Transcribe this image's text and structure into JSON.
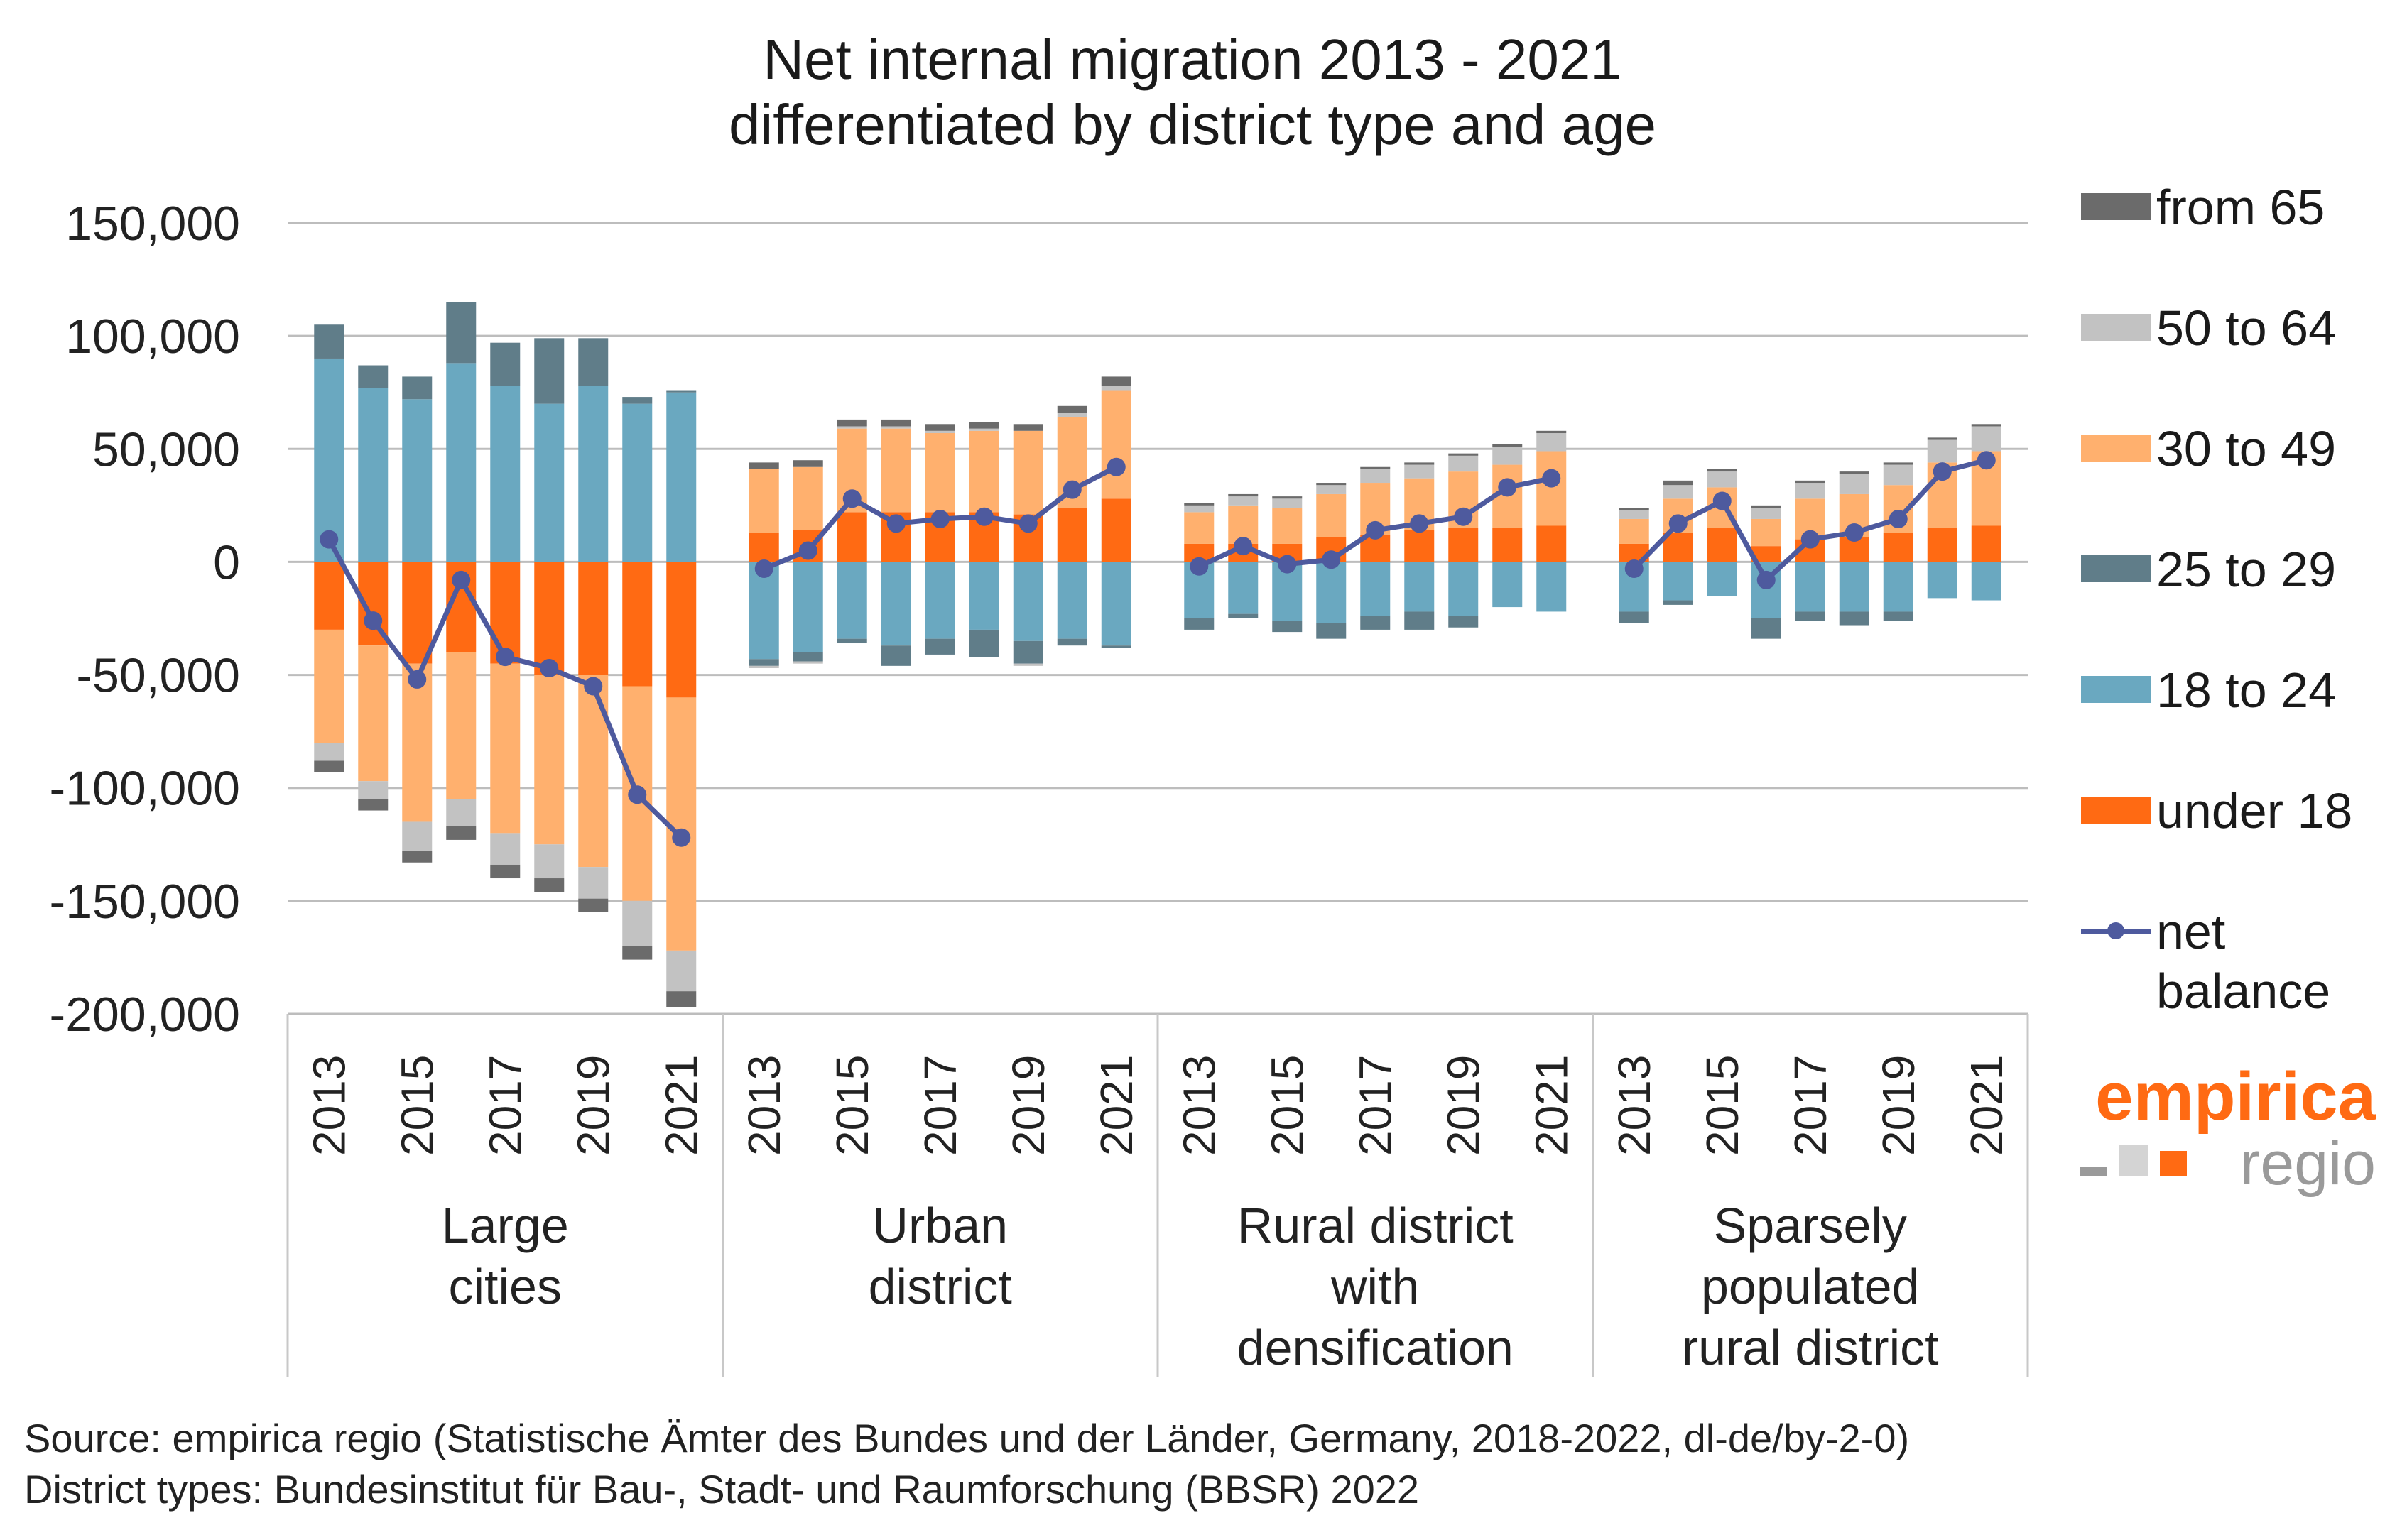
{
  "chart_data": {
    "type": "bar",
    "title": [
      "Net internal migration 2013 - 2021",
      "differentiated by district type and age"
    ],
    "ylim": [
      -200000,
      150000
    ],
    "y_ticks": [
      150000,
      100000,
      50000,
      0,
      -50000,
      -100000,
      -150000,
      -200000
    ],
    "y_tick_labels": [
      "150,000",
      "100,000",
      "50,000",
      "0",
      "-50,000",
      "-100,000",
      "-150,000",
      "-200,000"
    ],
    "years": [
      "2013",
      "2014",
      "2015",
      "2016",
      "2017",
      "2018",
      "2019",
      "2020",
      "2021"
    ],
    "year_tick_labels": [
      "2013",
      "2015",
      "2017",
      "2019",
      "2021"
    ],
    "series_colors": {
      "under_18": "#ff6a13",
      "18_24": "#6aa8c0",
      "25_29": "#607d89",
      "30_49": "#ffb06e",
      "50_64": "#c2c2c2",
      "65_plus": "#6b6b6b",
      "net": "#4e5a9e"
    },
    "legend": [
      {
        "key": "65_plus",
        "label": "from 65"
      },
      {
        "key": "50_64",
        "label": "50 to 64"
      },
      {
        "key": "30_49",
        "label": "30 to 49"
      },
      {
        "key": "25_29",
        "label": "25 to 29"
      },
      {
        "key": "18_24",
        "label": "18 to 24"
      },
      {
        "key": "under_18",
        "label": "under 18"
      },
      {
        "key": "net",
        "label": "net balance",
        "label_lines": [
          "net",
          "balance"
        ]
      }
    ],
    "groups": [
      {
        "name": "Large cities",
        "label_lines": [
          "Large",
          "cities"
        ],
        "series": {
          "under_18": [
            -30000,
            -37000,
            -45000,
            -40000,
            -45000,
            -50000,
            -50000,
            -55000,
            -60000
          ],
          "18_24": [
            90000,
            77000,
            72000,
            88000,
            78000,
            70000,
            78000,
            70000,
            75000
          ],
          "25_29": [
            15000,
            10000,
            10000,
            27000,
            19000,
            29000,
            21000,
            3000,
            1000
          ],
          "30_49": [
            -50000,
            -60000,
            -70000,
            -65000,
            -75000,
            -75000,
            -85000,
            -95000,
            -112000
          ],
          "50_64": [
            -8000,
            -8000,
            -13000,
            -12000,
            -14000,
            -15000,
            -14000,
            -20000,
            -18000
          ],
          "65_plus": [
            -5000,
            -5000,
            -5000,
            -6000,
            -6000,
            -6000,
            -6000,
            -6000,
            -7000
          ]
        },
        "net": [
          10000,
          -26000,
          -52000,
          -8000,
          -42000,
          -47000,
          -55000,
          -103000,
          -122000
        ]
      },
      {
        "name": "Urban district",
        "label_lines": [
          "Urban",
          "district"
        ],
        "series": {
          "under_18": [
            13000,
            14000,
            22000,
            22000,
            22000,
            22000,
            21000,
            24000,
            28000
          ],
          "18_24": [
            -43000,
            -40000,
            -34000,
            -37000,
            -34000,
            -30000,
            -35000,
            -34000,
            -37000
          ],
          "25_29": [
            -3000,
            -4000,
            -2000,
            -9000,
            -7000,
            -12000,
            -10000,
            -3000,
            -1000
          ],
          "30_49": [
            28000,
            28000,
            37000,
            37000,
            35000,
            36000,
            37000,
            40000,
            48000
          ],
          "50_64": [
            -1000,
            -1000,
            1000,
            1000,
            1000,
            1000,
            -1000,
            2000,
            2000
          ],
          "65_plus": [
            3000,
            3000,
            3000,
            3000,
            3000,
            3000,
            3000,
            3000,
            4000
          ]
        },
        "net": [
          -3000,
          5000,
          28000,
          17000,
          19000,
          20000,
          17000,
          32000,
          42000
        ]
      },
      {
        "name": "Rural district with densification",
        "label_lines": [
          "Rural district",
          "with",
          "densification"
        ],
        "series": {
          "under_18": [
            8000,
            8000,
            8000,
            11000,
            12000,
            14000,
            15000,
            15000,
            16000
          ],
          "18_24": [
            -25000,
            -23000,
            -26000,
            -27000,
            -24000,
            -22000,
            -24000,
            -20000,
            -22000
          ],
          "25_29": [
            -5000,
            -2000,
            -5000,
            -7000,
            -6000,
            -8000,
            -5000,
            0,
            0
          ],
          "30_49": [
            14000,
            17000,
            16000,
            19000,
            23000,
            23000,
            25000,
            28000,
            33000
          ],
          "50_64": [
            3000,
            4000,
            4000,
            4000,
            6000,
            6000,
            7000,
            8000,
            8000
          ],
          "65_plus": [
            1000,
            1000,
            1000,
            1000,
            1000,
            1000,
            1000,
            1000,
            1000
          ]
        },
        "net": [
          -2000,
          7000,
          -1000,
          1000,
          14000,
          17000,
          20000,
          33000,
          37000
        ]
      },
      {
        "name": "Sparsely populated rural district",
        "label_lines": [
          "Sparsely",
          "populated",
          "rural district"
        ],
        "series": {
          "under_18": [
            8000,
            13000,
            15000,
            7000,
            10000,
            11000,
            13000,
            15000,
            16000
          ],
          "18_24": [
            -22000,
            -17000,
            -15000,
            -25000,
            -22000,
            -22000,
            -22000,
            -16000,
            -17000
          ],
          "25_29": [
            -5000,
            -2000,
            0,
            -9000,
            -4000,
            -6000,
            -4000,
            0,
            0
          ],
          "30_49": [
            11000,
            15000,
            18000,
            12000,
            18000,
            19000,
            21000,
            29000,
            33000
          ],
          "50_64": [
            4000,
            6000,
            7000,
            5000,
            7000,
            9000,
            9000,
            10000,
            11000
          ],
          "65_plus": [
            1000,
            2000,
            1000,
            1000,
            1000,
            1000,
            1000,
            1000,
            1000
          ]
        },
        "net": [
          -3000,
          17000,
          27000,
          -8000,
          10000,
          13000,
          19000,
          40000,
          45000
        ]
      }
    ]
  },
  "title_lines": [
    "Net internal migration 2013 - 2021",
    "differentiated by district type and age"
  ],
  "logo": {
    "brand": "empirica",
    "sub": "regio",
    "brand_color": "#ff6a13",
    "sub_color": "#9a9a9a"
  },
  "source_lines": [
    "Source: empirica regio (Statistische Ämter des Bundes und der Länder, Germany, 2018-2022, dl-de/by-2-0)",
    "District types: Bundesinstitut für Bau-, Stadt- und Raumforschung (BBSR) 2022"
  ]
}
